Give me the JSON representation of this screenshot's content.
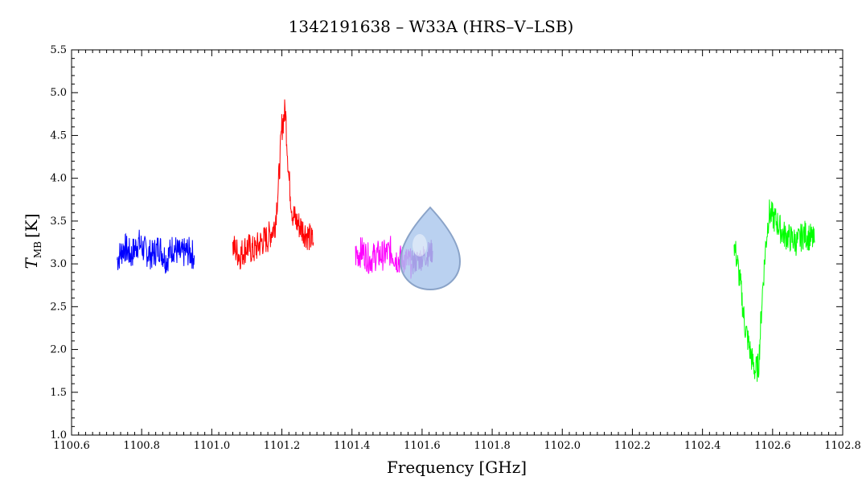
{
  "chart_data": {
    "type": "line",
    "title": "1342191638 – W33A (HRS–V–LSB)",
    "xlabel": "Frequency [GHz]",
    "ylabel": "T",
    "ylabel_subscript": "MB",
    "ylabel_unit": "[K]",
    "xlim": [
      1100.6,
      1102.8
    ],
    "ylim": [
      1.0,
      5.5
    ],
    "x_ticks": [
      1100.6,
      1100.8,
      1101.0,
      1101.2,
      1101.4,
      1101.6,
      1101.8,
      1102.0,
      1102.2,
      1102.4,
      1102.6,
      1102.8
    ],
    "x_tick_labels": [
      "1100.6",
      "1100.8",
      "1101.0",
      "1101.2",
      "1101.4",
      "1101.6",
      "1101.8",
      "1102.0",
      "1102.2",
      "1102.4",
      "1102.6",
      "1102.8"
    ],
    "y_ticks": [
      1.0,
      1.5,
      2.0,
      2.5,
      3.0,
      3.5,
      4.0,
      4.5,
      5.0,
      5.5
    ],
    "y_tick_labels": [
      "1.0",
      "1.5",
      "2.0",
      "2.5",
      "3.0",
      "3.5",
      "4.0",
      "4.5",
      "5.0",
      "5.5"
    ],
    "grid": false,
    "series": [
      {
        "color": "#0000ff",
        "x": [
          1100.73,
          1100.75,
          1100.77,
          1100.79,
          1100.81,
          1100.83,
          1100.85,
          1100.87,
          1100.89,
          1100.91,
          1100.93,
          1100.95
        ],
        "y": [
          3.05,
          3.2,
          3.1,
          3.25,
          3.15,
          3.1,
          3.2,
          3.05,
          3.2,
          3.1,
          3.15,
          3.1
        ],
        "noise": 0.18
      },
      {
        "color": "#ff0000",
        "x": [
          1101.06,
          1101.08,
          1101.1,
          1101.12,
          1101.14,
          1101.16,
          1101.18,
          1101.19,
          1101.2,
          1101.21,
          1101.22,
          1101.23,
          1101.24,
          1101.26,
          1101.28,
          1101.29
        ],
        "y": [
          3.2,
          3.1,
          3.2,
          3.15,
          3.25,
          3.3,
          3.45,
          3.9,
          4.6,
          4.8,
          4.0,
          3.6,
          3.5,
          3.4,
          3.3,
          3.25
        ],
        "noise": 0.18
      },
      {
        "color": "#ff00ff",
        "x": [
          1101.41,
          1101.43,
          1101.45,
          1101.47,
          1101.49,
          1101.51,
          1101.53,
          1101.55,
          1101.57
        ],
        "y": [
          3.1,
          3.15,
          3.05,
          3.1,
          3.1,
          3.15,
          3.05,
          3.05,
          3.0
        ],
        "noise": 0.18
      },
      {
        "color": "#9900cc",
        "x": [
          1101.57,
          1101.59,
          1101.61,
          1101.63
        ],
        "y": [
          3.0,
          3.05,
          3.1,
          3.15
        ],
        "noise": 0.15
      },
      {
        "color": "#00ff00",
        "x": [
          1102.49,
          1102.5,
          1102.51,
          1102.52,
          1102.53,
          1102.54,
          1102.55,
          1102.56,
          1102.57,
          1102.58,
          1102.59,
          1102.61,
          1102.63,
          1102.65,
          1102.67,
          1102.69,
          1102.71,
          1102.72
        ],
        "y": [
          3.25,
          3.0,
          2.7,
          2.3,
          2.1,
          1.9,
          1.75,
          1.8,
          2.6,
          3.2,
          3.6,
          3.5,
          3.35,
          3.3,
          3.25,
          3.35,
          3.3,
          3.25
        ],
        "noise": 0.17
      }
    ]
  }
}
